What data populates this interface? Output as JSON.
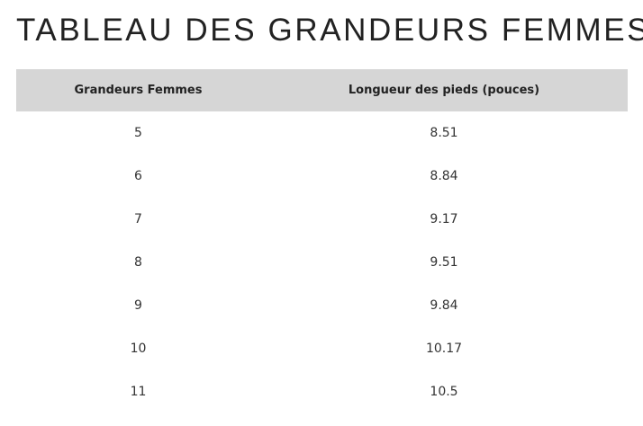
{
  "title": "TABLEAU DES GRANDEURS FEMMES",
  "table": {
    "headers": [
      "Grandeurs Femmes",
      "Longueur des pieds (pouces)"
    ],
    "rows": [
      [
        "5",
        "8.51"
      ],
      [
        "6",
        "8.84"
      ],
      [
        "7",
        "9.17"
      ],
      [
        "8",
        "9.51"
      ],
      [
        "9",
        "9.84"
      ],
      [
        "10",
        "10.17"
      ],
      [
        "11",
        "10.5"
      ]
    ]
  }
}
